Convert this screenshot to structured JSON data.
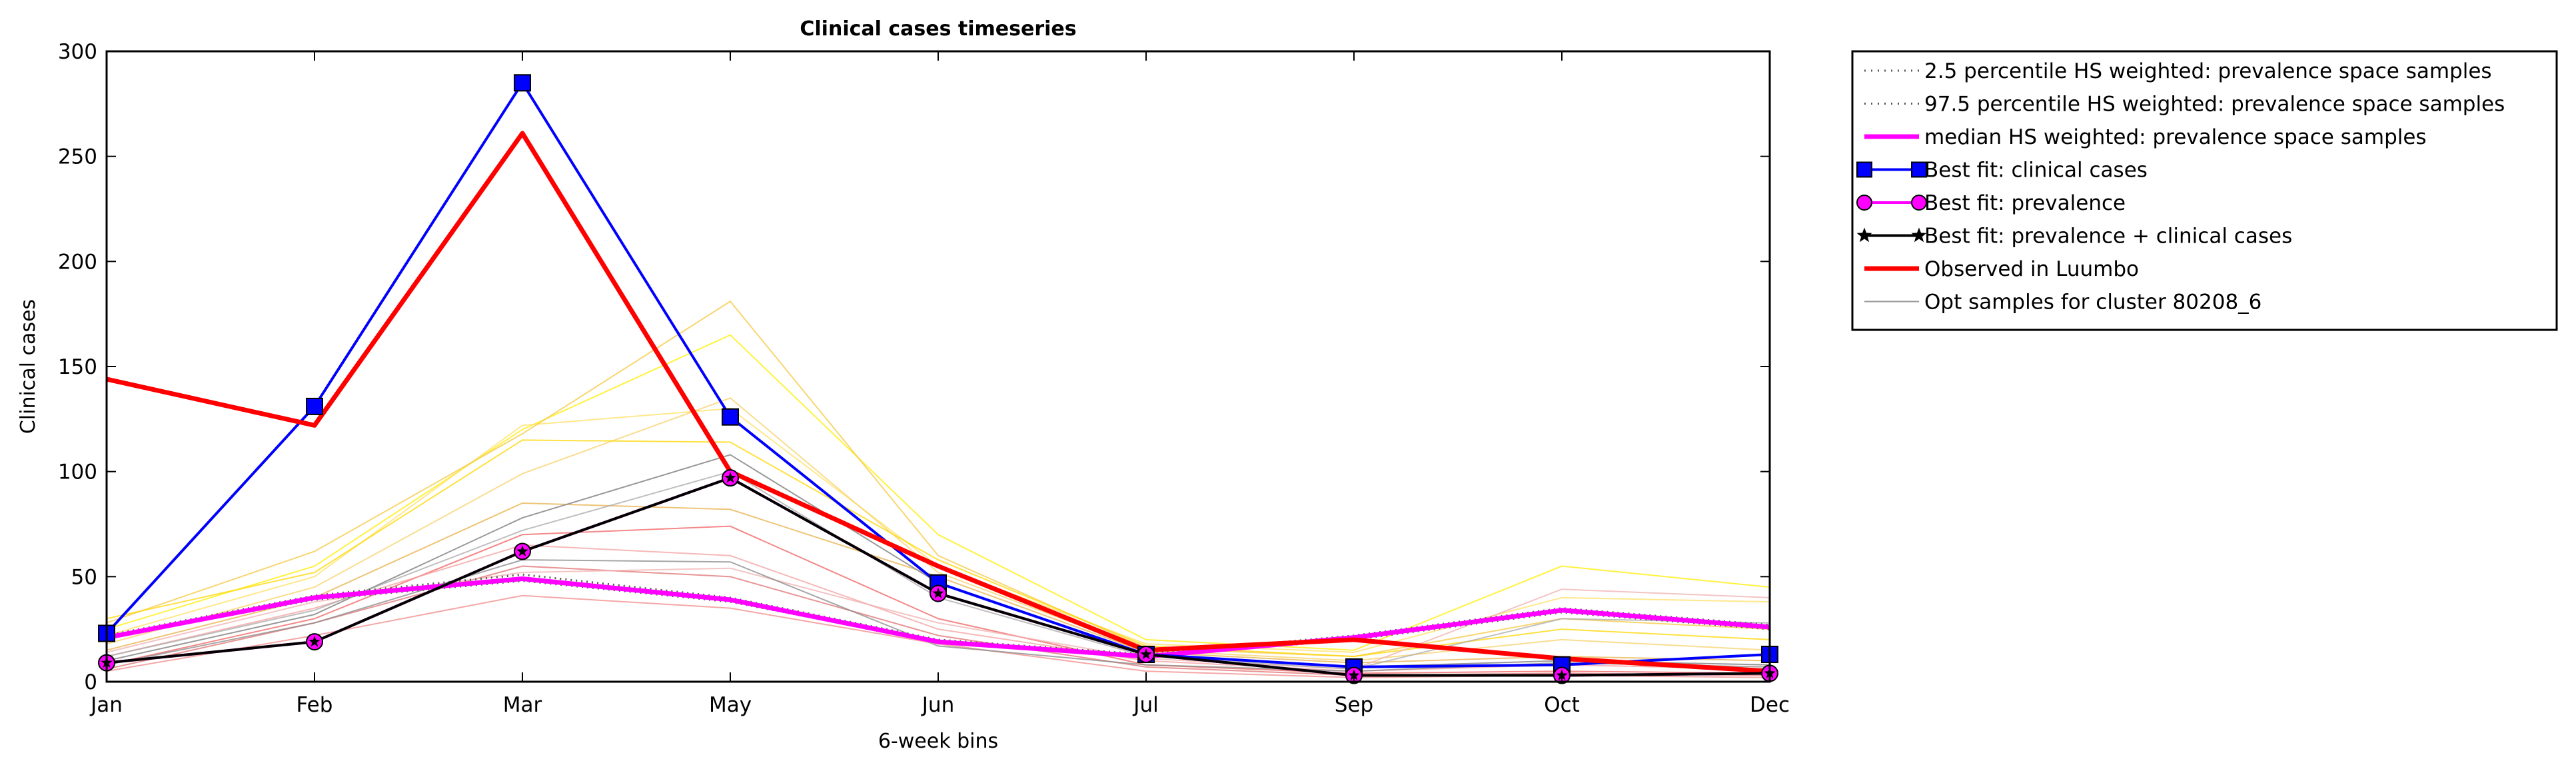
{
  "chart_data": {
    "type": "line",
    "title": "Clinical cases timeseries",
    "xlabel": "6-week bins",
    "ylabel": "Clinical cases",
    "categories": [
      "Jan",
      "Feb",
      "Mar",
      "May",
      "Jun",
      "Jul",
      "Sep",
      "Oct",
      "Dec"
    ],
    "ylim": [
      0,
      300
    ],
    "yticks": [
      0,
      50,
      100,
      150,
      200,
      250,
      300
    ],
    "grid": false,
    "legend_position": "outside-top-right",
    "series": [
      {
        "name": "2.5 percentile HS weighted: prevalence space samples",
        "style": "dotted",
        "color": "#555555",
        "values": [
          21,
          39,
          48,
          38,
          19,
          12,
          20,
          33,
          25
        ]
      },
      {
        "name": "97.5 percentile HS weighted: prevalence space samples",
        "style": "dotted",
        "color": "#555555",
        "values": [
          22,
          41,
          51,
          40,
          20,
          13,
          22,
          35,
          27
        ]
      },
      {
        "name": "median HS weighted: prevalence space samples",
        "style": "solid",
        "color": "#ff00ff",
        "values": [
          21,
          40,
          49,
          39,
          19,
          12,
          21,
          34,
          26
        ]
      },
      {
        "name": "Best fit: clinical cases",
        "style": "solid",
        "color": "#0000ff",
        "marker": "square",
        "values": [
          23,
          131,
          285,
          126,
          47,
          13,
          7,
          8,
          13
        ]
      },
      {
        "name": "Best fit: prevalence",
        "style": "solid",
        "color": "#ff00ff",
        "marker": "circle",
        "values": [
          9,
          19,
          62,
          97,
          42,
          13,
          3,
          3,
          4
        ]
      },
      {
        "name": "Best fit: prevalence + clinical cases",
        "style": "solid",
        "color": "#000000",
        "marker": "star",
        "values": [
          9,
          19,
          62,
          97,
          42,
          13,
          3,
          3,
          4
        ]
      },
      {
        "name": "Observed in Luumbo",
        "style": "solid",
        "color": "#ff0000",
        "values": [
          144,
          122,
          261,
          100,
          55,
          15,
          20,
          11,
          5
        ]
      },
      {
        "name": "Opt samples for cluster 80208_6",
        "style": "solid",
        "color": "#999999",
        "values": [
          10,
          32,
          78,
          108,
          47,
          13,
          7,
          10,
          8
        ]
      }
    ],
    "sample_traces": [
      {
        "color": "#ffee00",
        "values": [
          25,
          55,
          120,
          165,
          70,
          20,
          15,
          55,
          45
        ]
      },
      {
        "color": "#ffe066",
        "values": [
          22,
          50,
          122,
          130,
          55,
          18,
          14,
          40,
          38
        ]
      },
      {
        "color": "#f5c842",
        "values": [
          28,
          62,
          118,
          181,
          60,
          16,
          12,
          30,
          25
        ]
      },
      {
        "color": "#f7d16b",
        "values": [
          18,
          45,
          99,
          135,
          52,
          15,
          10,
          20,
          15
        ]
      },
      {
        "color": "#ffd700",
        "values": [
          30,
          52,
          115,
          114,
          58,
          17,
          12,
          25,
          20
        ]
      },
      {
        "color": "#e8b04a",
        "values": [
          15,
          40,
          85,
          82,
          50,
          14,
          9,
          12,
          10
        ]
      },
      {
        "color": "#f08a8a",
        "values": [
          5,
          22,
          41,
          35,
          18,
          5,
          2,
          3,
          2
        ]
      },
      {
        "color": "#f06060",
        "values": [
          8,
          30,
          70,
          74,
          30,
          8,
          4,
          5,
          4
        ]
      },
      {
        "color": "#f4a0a0",
        "values": [
          12,
          35,
          65,
          60,
          25,
          10,
          5,
          8,
          6
        ]
      },
      {
        "color": "#e07070",
        "values": [
          6,
          28,
          55,
          50,
          22,
          7,
          3,
          4,
          3
        ]
      },
      {
        "color": "#f0b0b0",
        "values": [
          14,
          38,
          52,
          54,
          28,
          11,
          6,
          44,
          40
        ]
      },
      {
        "color": "#888888",
        "values": [
          8,
          28,
          58,
          57,
          17,
          8,
          5,
          9,
          7
        ]
      },
      {
        "color": "#aaaaaa",
        "values": [
          12,
          34,
          72,
          100,
          40,
          12,
          6,
          30,
          28
        ]
      }
    ]
  }
}
